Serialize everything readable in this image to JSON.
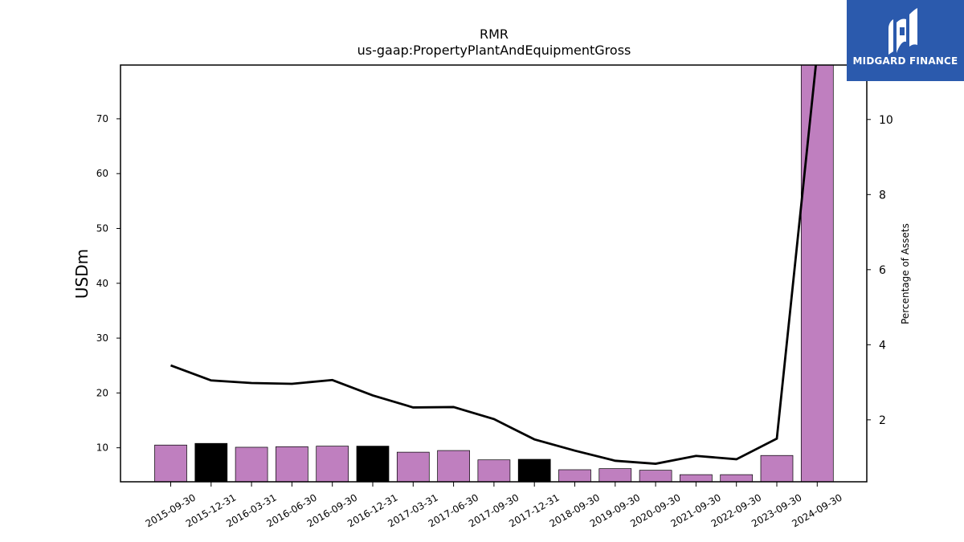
{
  "chart_data": {
    "type": "bar",
    "title": "RMR",
    "subtitle": "us-gaap:PropertyPlantAndEquipmentGross",
    "ylabel": "USDm",
    "y2label": "Percentage of Assets",
    "categories": [
      "2015-09-30",
      "2015-12-31",
      "2016-03-31",
      "2016-06-30",
      "2016-09-30",
      "2016-12-31",
      "2017-03-31",
      "2017-06-30",
      "2017-09-30",
      "2017-12-31",
      "2018-09-30",
      "2019-09-30",
      "2020-09-30",
      "2021-09-30",
      "2022-09-30",
      "2023-09-30",
      "2024-09-30"
    ],
    "series": [
      {
        "type": "bar",
        "values": [
          10.5,
          10.8,
          10.1,
          10.2,
          10.3,
          10.3,
          9.2,
          9.5,
          7.8,
          7.9,
          6.0,
          6.2,
          5.9,
          5.1,
          5.1,
          8.6,
          80.0
        ],
        "colors": [
          "#bf7fbf",
          "#000000",
          "#bf7fbf",
          "#bf7fbf",
          "#bf7fbf",
          "#000000",
          "#bf7fbf",
          "#bf7fbf",
          "#bf7fbf",
          "#000000",
          "#bf7fbf",
          "#bf7fbf",
          "#bf7fbf",
          "#bf7fbf",
          "#bf7fbf",
          "#bf7fbf",
          "#bf7fbf"
        ]
      },
      {
        "type": "line",
        "axis": "right",
        "values": [
          3.45,
          3.05,
          2.98,
          2.96,
          3.06,
          2.65,
          2.33,
          2.34,
          2.02,
          1.48,
          1.18,
          0.91,
          0.83,
          1.04,
          0.95,
          1.5,
          11.8
        ]
      }
    ],
    "ylim": [
      3.8,
      79.8
    ],
    "yticks": [
      10,
      20,
      30,
      40,
      50,
      60,
      70
    ],
    "y2lim": [
      0.35,
      11.45
    ],
    "y2ticks": [
      2,
      4,
      6,
      8,
      10
    ],
    "grid": false,
    "colors": {
      "bar": "#bf7fbf",
      "bar_highlight": "#000000",
      "line": "#000000"
    }
  },
  "logo": {
    "text": "MIDGARD FINANCE",
    "background": "#2b5aad"
  }
}
